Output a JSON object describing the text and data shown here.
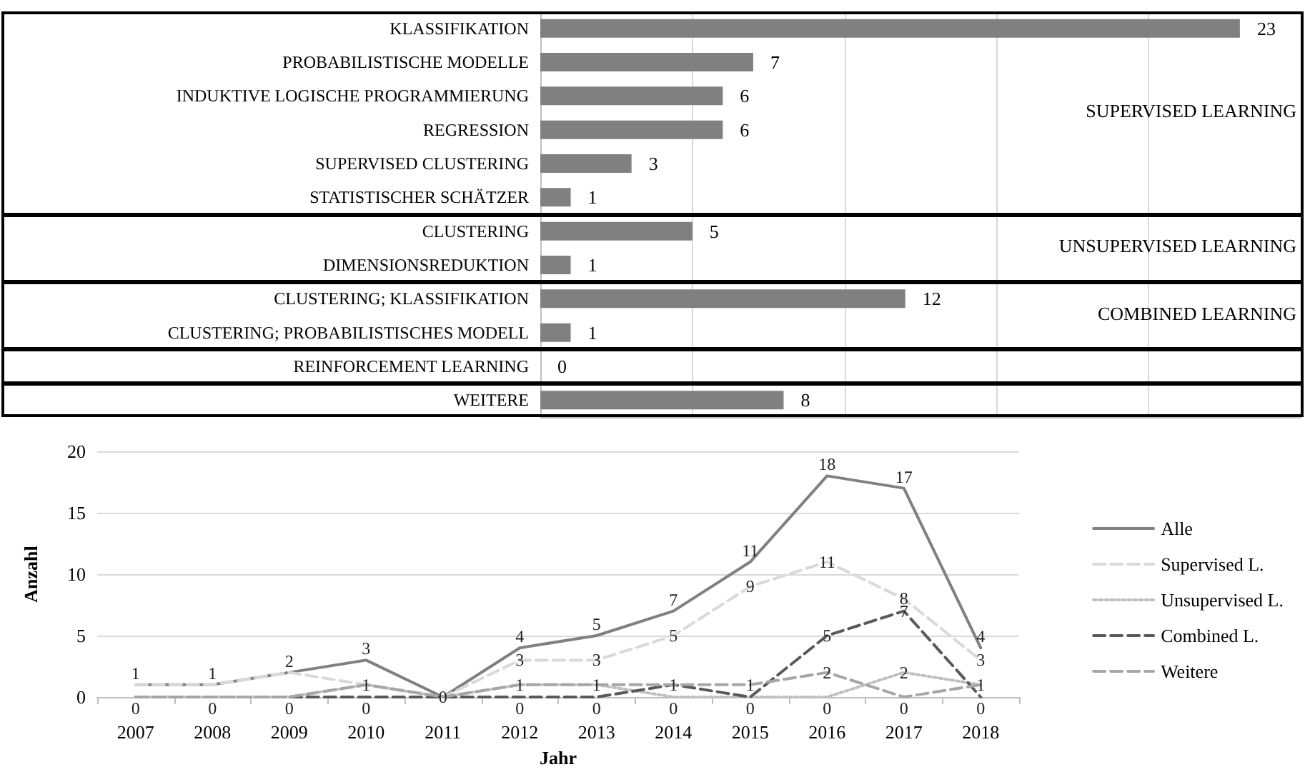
{
  "chart_data": [
    {
      "type": "bar",
      "orientation": "horizontal",
      "categories": [
        "KLASSIFIKATION",
        "PROBABILISTISCHE MODELLE",
        "INDUKTIVE LOGISCHE PROGRAMMIERUNG",
        "REGRESSION",
        "SUPERVISED CLUSTERING",
        "STATISTISCHER SCHÄTZER",
        "CLUSTERING",
        "DIMENSIONSREDUKTION",
        "CLUSTERING; KLASSIFIKATION",
        "CLUSTERING; PROBABILISTISCHES MODELL",
        "REINFORCEMENT LEARNING",
        "WEITERE"
      ],
      "values": [
        23,
        7,
        6,
        6,
        3,
        1,
        5,
        1,
        12,
        1,
        0,
        8
      ],
      "color": "#808080",
      "data_labels": true,
      "xlim": [
        0,
        25
      ],
      "xticks": [
        {
          "value": 0,
          "label": null
        },
        {
          "value": 5,
          "label": null
        },
        {
          "value": 10,
          "label": null
        },
        {
          "value": 15,
          "label": null
        },
        {
          "value": 20,
          "label": null
        }
      ],
      "grid": "x",
      "tick_labels": "y",
      "annotations": [
        "SUPERVISED LEARNING",
        "UNSUPERVISED LEARNING",
        "COMBINED LEARNING"
      ]
    },
    {
      "type": "line",
      "categories": [
        "2007",
        "2008",
        "2009",
        "2010",
        "2011",
        "2012",
        "2013",
        "2014",
        "2015",
        "2016",
        "2017",
        "2018"
      ],
      "xlabel": "Jahr",
      "ylabel": "Anzahl",
      "ylim": [
        0,
        20
      ],
      "yticks": [
        0,
        5,
        10,
        15,
        20
      ],
      "grid": "y",
      "legend": "right",
      "marker": "none",
      "series": [
        {
          "name": "Alle",
          "color": "#808080",
          "line_style": "solid",
          "values": [
            1,
            1,
            2,
            3,
            0,
            4,
            5,
            7,
            11,
            18,
            17,
            4
          ],
          "value_labels": [
            "1",
            "1",
            "2",
            "3",
            "0",
            "4",
            "5",
            "7",
            "11",
            "18",
            "17",
            "4"
          ]
        },
        {
          "name": "Supervised L.",
          "color": "#d9d9d9",
          "line_style": "dashed",
          "values": [
            1,
            1,
            2,
            1,
            0,
            3,
            3,
            5,
            9,
            11,
            8,
            3
          ],
          "value_labels": [
            null,
            null,
            null,
            "1",
            null,
            "3",
            "3",
            "5",
            "9",
            "11",
            "8",
            "3"
          ]
        },
        {
          "name": "Unsupervised L.",
          "color": "#bfbfbf",
          "line_style": "dotted",
          "values": [
            0,
            0,
            0,
            1,
            0,
            1,
            1,
            0,
            0,
            0,
            2,
            1
          ],
          "value_labels": [
            "0",
            "0",
            "0",
            null,
            null,
            "1",
            "1",
            "0",
            "0",
            "0",
            "2",
            "1"
          ]
        },
        {
          "name": "Combined L.",
          "color": "#595959",
          "line_style": "dashed",
          "values": [
            0,
            0,
            0,
            0,
            0,
            0,
            0,
            1,
            0,
            5,
            7,
            0
          ],
          "value_labels": [
            null,
            null,
            null,
            "0",
            null,
            "0",
            "0",
            "1",
            null,
            "5",
            "7",
            "0"
          ]
        },
        {
          "name": "Weitere",
          "color": "#a6a6a6",
          "line_style": "dashed",
          "values": [
            0,
            0,
            0,
            1,
            0,
            1,
            1,
            1,
            1,
            2,
            0,
            1
          ],
          "value_labels": [
            null,
            null,
            null,
            null,
            null,
            null,
            null,
            null,
            "1",
            "2",
            "0",
            null
          ]
        }
      ]
    }
  ]
}
